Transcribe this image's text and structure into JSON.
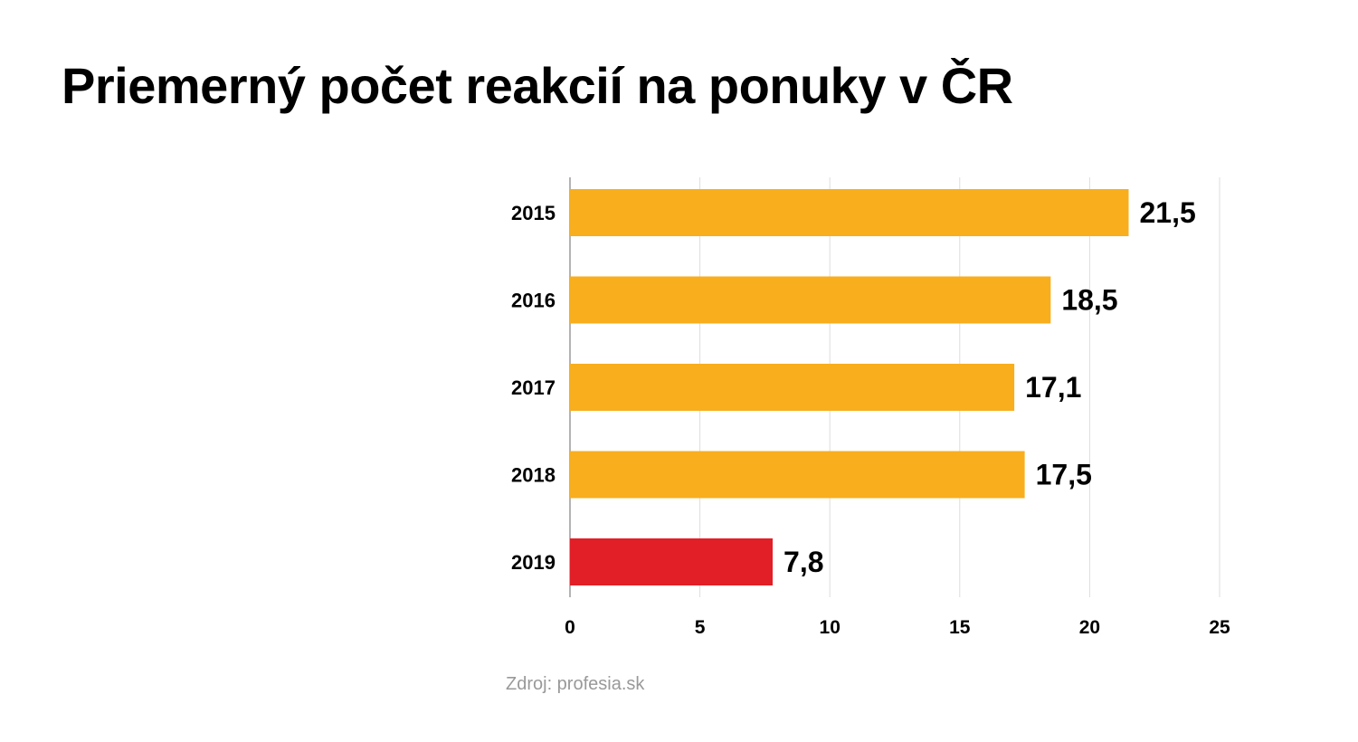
{
  "chart_data": {
    "type": "bar",
    "orientation": "horizontal",
    "title": "Priemerný počet reakcií na ponuky v ČR",
    "categories": [
      "2015",
      "2016",
      "2017",
      "2018",
      "2019"
    ],
    "values": [
      21.5,
      18.5,
      17.1,
      17.5,
      7.8
    ],
    "value_labels": [
      "21,5",
      "18,5",
      "17,1",
      "17,5",
      "7,8"
    ],
    "bar_colors": [
      "#F8AE1D",
      "#F8AE1D",
      "#F8AE1D",
      "#F8AE1D",
      "#E21E26"
    ],
    "xlim": [
      0,
      25
    ],
    "xticks": [
      0,
      5,
      10,
      15,
      20,
      25
    ],
    "xtick_labels": [
      "0",
      "5",
      "10",
      "15",
      "20",
      "25"
    ],
    "grid": "vertical",
    "source": "Zdroj: profesia.sk"
  }
}
